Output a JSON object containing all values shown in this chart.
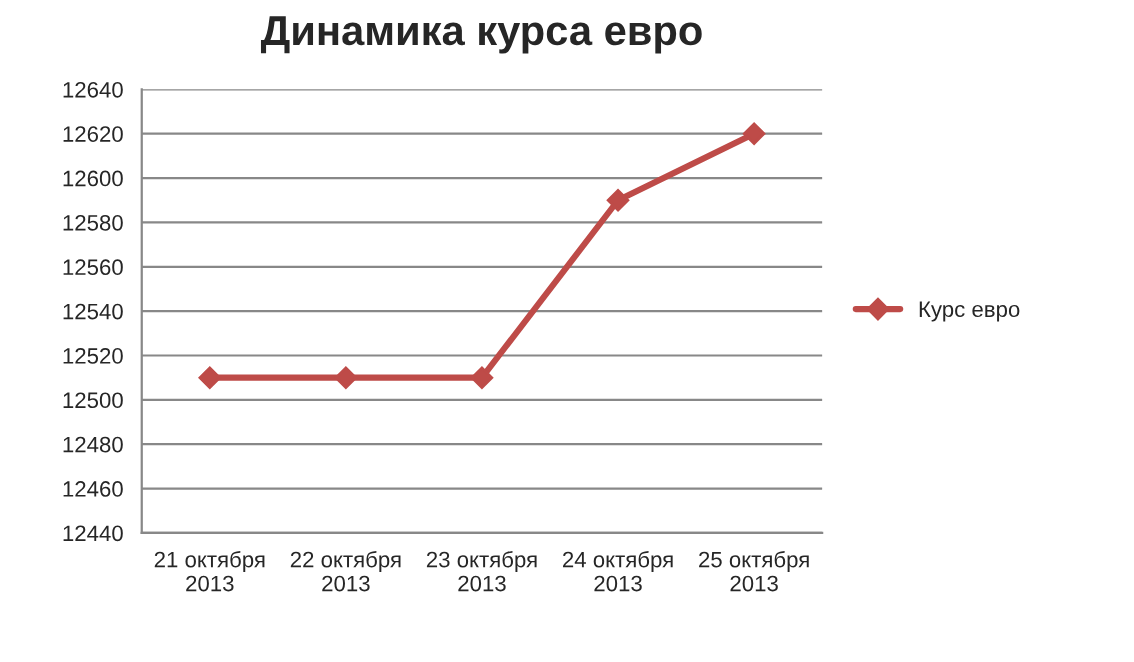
{
  "chart_data": {
    "type": "line",
    "title": "Динамика курса евро",
    "categories": [
      "21 октября\n2013",
      "22 октября\n2013",
      "23 октября\n2013",
      "24 октября\n2013",
      "25 октября\n2013"
    ],
    "series": [
      {
        "name": "Курс евро",
        "color": "#be4b48",
        "values": [
          12510,
          12510,
          12510,
          12590,
          12620
        ]
      }
    ],
    "ylim": [
      12440,
      12640
    ],
    "yticks": [
      12440,
      12460,
      12480,
      12500,
      12520,
      12540,
      12560,
      12580,
      12600,
      12620,
      12640
    ],
    "grid": "y",
    "legend": "right",
    "marker": "diamond",
    "line_style": "solid"
  }
}
